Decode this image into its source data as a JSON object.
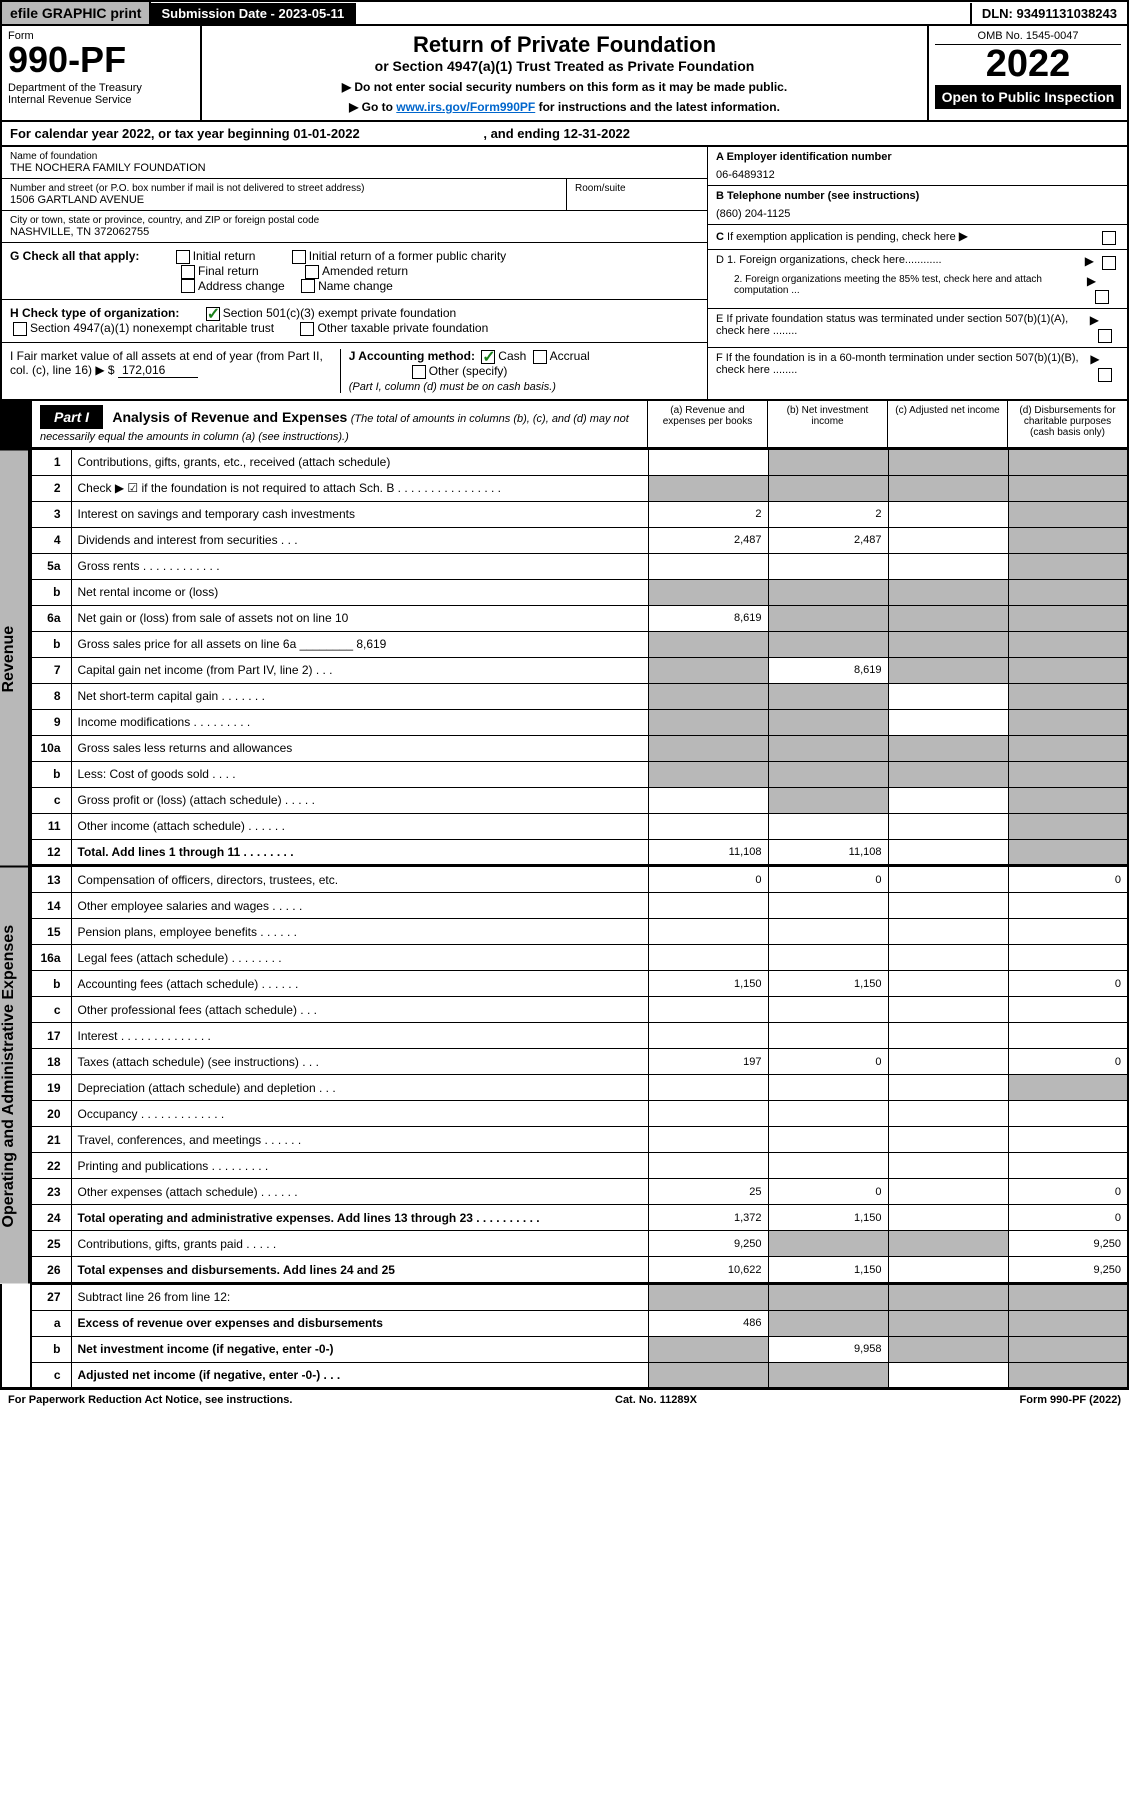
{
  "topbar": {
    "efile": "efile GRAPHIC print",
    "subdate_label": "Submission Date - 2023-05-11",
    "dln": "DLN: 93491131038243"
  },
  "header": {
    "form_label": "Form",
    "form_number": "990-PF",
    "dept": "Department of the Treasury",
    "irs": "Internal Revenue Service",
    "title": "Return of Private Foundation",
    "subtitle": "or Section 4947(a)(1) Trust Treated as Private Foundation",
    "note1": "▶ Do not enter social security numbers on this form as it may be made public.",
    "note2_pre": "▶ Go to ",
    "note2_link": "www.irs.gov/Form990PF",
    "note2_post": " for instructions and the latest information.",
    "omb": "OMB No. 1545-0047",
    "year": "2022",
    "open": "Open to Public Inspection"
  },
  "calendar": {
    "text_pre": "For calendar year 2022, or tax year beginning ",
    "begin": "01-01-2022",
    "text_mid": " , and ending ",
    "end": "12-31-2022"
  },
  "foundation": {
    "name_label": "Name of foundation",
    "name": "THE NOCHERA FAMILY FOUNDATION",
    "addr_label": "Number and street (or P.O. box number if mail is not delivered to street address)",
    "addr": "1506 GARTLAND AVENUE",
    "room_label": "Room/suite",
    "city_label": "City or town, state or province, country, and ZIP or foreign postal code",
    "city": "NASHVILLE, TN  372062755"
  },
  "right_info": {
    "a_label": "A Employer identification number",
    "a_val": "06-6489312",
    "b_label": "B Telephone number (see instructions)",
    "b_val": "(860) 204-1125",
    "c_label": "C If exemption application is pending, check here",
    "d1_label": "D 1. Foreign organizations, check here............",
    "d2_label": "2. Foreign organizations meeting the 85% test, check here and attach computation ...",
    "e_label": "E  If private foundation status was terminated under section 507(b)(1)(A), check here ........",
    "f_label": "F  If the foundation is in a 60-month termination under section 507(b)(1)(B), check here ........"
  },
  "g": {
    "label": "G Check all that apply:",
    "opts": [
      "Initial return",
      "Final return",
      "Address change",
      "Initial return of a former public charity",
      "Amended return",
      "Name change"
    ]
  },
  "h": {
    "label": "H Check type of organization:",
    "opt1": "Section 501(c)(3) exempt private foundation",
    "opt2": "Section 4947(a)(1) nonexempt charitable trust",
    "opt3": "Other taxable private foundation"
  },
  "i": {
    "label": "I Fair market value of all assets at end of year (from Part II, col. (c), line 16) ▶ $",
    "val": "172,016"
  },
  "j": {
    "label": "J Accounting method:",
    "cash": "Cash",
    "accrual": "Accrual",
    "other": "Other (specify)",
    "note": "(Part I, column (d) must be on cash basis.)"
  },
  "part1": {
    "label": "Part I",
    "title": "Analysis of Revenue and Expenses",
    "sub": " (The total of amounts in columns (b), (c), and (d) may not necessarily equal the amounts in column (a) (see instructions).)",
    "col_a": "(a)  Revenue and expenses per books",
    "col_b": "(b)  Net investment income",
    "col_c": "(c)  Adjusted net income",
    "col_d": "(d)  Disbursements for charitable purposes (cash basis only)"
  },
  "side": {
    "revenue": "Revenue",
    "expenses": "Operating and Administrative Expenses"
  },
  "rows": [
    {
      "n": "1",
      "lbl": "Contributions, gifts, grants, etc., received (attach schedule)",
      "a": "",
      "b": "shade",
      "c": "shade",
      "d": "shade"
    },
    {
      "n": "2",
      "lbl": "Check ▶ ☑ if the foundation is not required to attach Sch. B   .   .   .   .   .   .   .   .   .   .   .   .   .   .   .   .",
      "a": "shade",
      "b": "shade",
      "c": "shade",
      "d": "shade"
    },
    {
      "n": "3",
      "lbl": "Interest on savings and temporary cash investments",
      "a": "2",
      "b": "2",
      "c": "",
      "d": "shade"
    },
    {
      "n": "4",
      "lbl": "Dividends and interest from securities   .   .   .",
      "a": "2,487",
      "b": "2,487",
      "c": "",
      "d": "shade"
    },
    {
      "n": "5a",
      "lbl": "Gross rents   .   .   .   .   .   .   .   .   .   .   .   .",
      "a": "",
      "b": "",
      "c": "",
      "d": "shade"
    },
    {
      "n": "b",
      "lbl": "Net rental income or (loss)  ",
      "a": "shade",
      "b": "shade",
      "c": "shade",
      "d": "shade"
    },
    {
      "n": "6a",
      "lbl": "Net gain or (loss) from sale of assets not on line 10",
      "a": "8,619",
      "b": "shade",
      "c": "shade",
      "d": "shade"
    },
    {
      "n": "b",
      "lbl": "Gross sales price for all assets on line 6a ________ 8,619",
      "a": "shade",
      "b": "shade",
      "c": "shade",
      "d": "shade"
    },
    {
      "n": "7",
      "lbl": "Capital gain net income (from Part IV, line 2)   .   .   .",
      "a": "shade",
      "b": "8,619",
      "c": "shade",
      "d": "shade"
    },
    {
      "n": "8",
      "lbl": "Net short-term capital gain   .   .   .   .   .   .   .",
      "a": "shade",
      "b": "shade",
      "c": "",
      "d": "shade"
    },
    {
      "n": "9",
      "lbl": "Income modifications   .   .   .   .   .   .   .   .   .",
      "a": "shade",
      "b": "shade",
      "c": "",
      "d": "shade"
    },
    {
      "n": "10a",
      "lbl": "Gross sales less returns and allowances",
      "a": "shade",
      "b": "shade",
      "c": "shade",
      "d": "shade"
    },
    {
      "n": "b",
      "lbl": "Less: Cost of goods sold   .   .   .   .",
      "a": "shade",
      "b": "shade",
      "c": "shade",
      "d": "shade"
    },
    {
      "n": "c",
      "lbl": "Gross profit or (loss) (attach schedule)   .   .   .   .   .",
      "a": "",
      "b": "shade",
      "c": "",
      "d": "shade"
    },
    {
      "n": "11",
      "lbl": "Other income (attach schedule)   .   .   .   .   .   .",
      "a": "",
      "b": "",
      "c": "",
      "d": "shade"
    },
    {
      "n": "12",
      "lbl": "Total. Add lines 1 through 11   .   .   .   .   .   .   .   .",
      "a": "11,108",
      "b": "11,108",
      "c": "",
      "d": "shade",
      "bold": true
    }
  ],
  "exp_rows": [
    {
      "n": "13",
      "lbl": "Compensation of officers, directors, trustees, etc.",
      "a": "0",
      "b": "0",
      "c": "",
      "d": "0"
    },
    {
      "n": "14",
      "lbl": "Other employee salaries and wages   .   .   .   .   .",
      "a": "",
      "b": "",
      "c": "",
      "d": ""
    },
    {
      "n": "15",
      "lbl": "Pension plans, employee benefits   .   .   .   .   .   .",
      "a": "",
      "b": "",
      "c": "",
      "d": ""
    },
    {
      "n": "16a",
      "lbl": "Legal fees (attach schedule)   .   .   .   .   .   .   .   .",
      "a": "",
      "b": "",
      "c": "",
      "d": ""
    },
    {
      "n": "b",
      "lbl": "Accounting fees (attach schedule)   .   .   .   .   .   .",
      "a": "1,150",
      "b": "1,150",
      "c": "",
      "d": "0"
    },
    {
      "n": "c",
      "lbl": "Other professional fees (attach schedule)   .   .   .",
      "a": "",
      "b": "",
      "c": "",
      "d": ""
    },
    {
      "n": "17",
      "lbl": "Interest   .   .   .   .   .   .   .   .   .   .   .   .   .   .",
      "a": "",
      "b": "",
      "c": "",
      "d": ""
    },
    {
      "n": "18",
      "lbl": "Taxes (attach schedule) (see instructions)   .   .   .",
      "a": "197",
      "b": "0",
      "c": "",
      "d": "0"
    },
    {
      "n": "19",
      "lbl": "Depreciation (attach schedule) and depletion   .   .   .",
      "a": "",
      "b": "",
      "c": "",
      "d": "shade"
    },
    {
      "n": "20",
      "lbl": "Occupancy   .   .   .   .   .   .   .   .   .   .   .   .   .",
      "a": "",
      "b": "",
      "c": "",
      "d": ""
    },
    {
      "n": "21",
      "lbl": "Travel, conferences, and meetings   .   .   .   .   .   .",
      "a": "",
      "b": "",
      "c": "",
      "d": ""
    },
    {
      "n": "22",
      "lbl": "Printing and publications   .   .   .   .   .   .   .   .   .",
      "a": "",
      "b": "",
      "c": "",
      "d": ""
    },
    {
      "n": "23",
      "lbl": "Other expenses (attach schedule)   .   .   .   .   .   .",
      "a": "25",
      "b": "0",
      "c": "",
      "d": "0"
    },
    {
      "n": "24",
      "lbl": "Total operating and administrative expenses. Add lines 13 through 23   .   .   .   .   .   .   .   .   .   .",
      "a": "1,372",
      "b": "1,150",
      "c": "",
      "d": "0",
      "bold": true
    },
    {
      "n": "25",
      "lbl": "Contributions, gifts, grants paid   .   .   .   .   .",
      "a": "9,250",
      "b": "shade",
      "c": "shade",
      "d": "9,250"
    },
    {
      "n": "26",
      "lbl": "Total expenses and disbursements. Add lines 24 and 25",
      "a": "10,622",
      "b": "1,150",
      "c": "",
      "d": "9,250",
      "bold": true
    }
  ],
  "final_rows": [
    {
      "n": "27",
      "lbl": "Subtract line 26 from line 12:",
      "a": "shade",
      "b": "shade",
      "c": "shade",
      "d": "shade"
    },
    {
      "n": "a",
      "lbl": "Excess of revenue over expenses and disbursements",
      "a": "486",
      "b": "shade",
      "c": "shade",
      "d": "shade",
      "bold": true
    },
    {
      "n": "b",
      "lbl": "Net investment income (if negative, enter -0-)",
      "a": "shade",
      "b": "9,958",
      "c": "shade",
      "d": "shade",
      "bold": true
    },
    {
      "n": "c",
      "lbl": "Adjusted net income (if negative, enter -0-)   .   .   .",
      "a": "shade",
      "b": "shade",
      "c": "",
      "d": "shade",
      "bold": true
    }
  ],
  "footer": {
    "left": "For Paperwork Reduction Act Notice, see instructions.",
    "mid": "Cat. No. 11289X",
    "right": "Form 990-PF (2022)"
  }
}
